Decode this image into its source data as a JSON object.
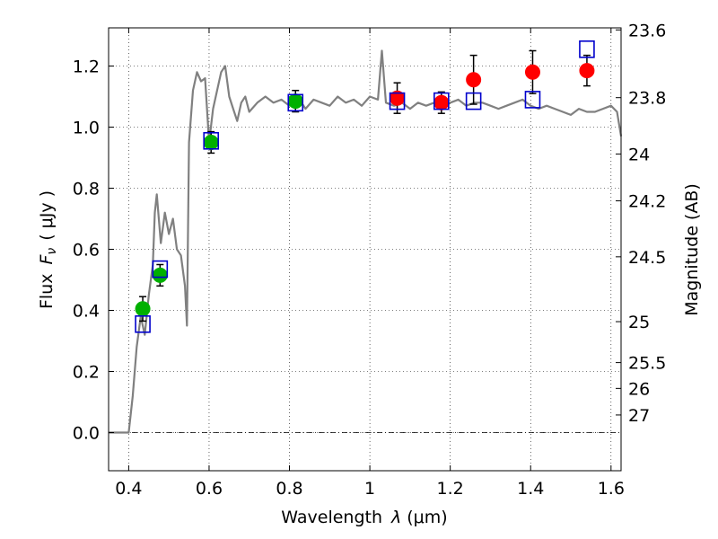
{
  "chart_data": {
    "type": "scatter",
    "title": "",
    "xlabel_prefix": "Wavelength",
    "xlabel_symbol": "λ",
    "xlabel_unit": "(μm)",
    "ylabel_prefix": "Flux",
    "ylabel_symbol": "F",
    "ylabel_subscript": "ν",
    "ylabel_unit": "( μJy )",
    "y2label": "Magnitude (AB)",
    "xlim": [
      0.35,
      1.625
    ],
    "ylim": [
      -0.125,
      1.325
    ],
    "grid": true,
    "x_ticks": [
      0.4,
      0.6,
      0.8,
      1.0,
      1.2,
      1.4,
      1.6
    ],
    "x_tick_labels": [
      "0.4",
      "0.6",
      "0.8",
      "1",
      "1.2",
      "1.4",
      "1.6"
    ],
    "y_ticks": [
      0.0,
      0.2,
      0.4,
      0.6,
      0.8,
      1.0,
      1.2
    ],
    "y_tick_labels": [
      "0.0",
      "0.2",
      "0.4",
      "0.6",
      "0.8",
      "1.0",
      "1.2"
    ],
    "magnitude_ticks": [
      "23.6",
      "23.8",
      "24",
      "24.2",
      "24.5",
      "25",
      "25.5",
      "26",
      "27"
    ],
    "magnitude_zero_point": 23.9,
    "series": [
      {
        "name": "model spectrum",
        "kind": "line",
        "color": "#808080",
        "x": [
          0.35,
          0.4,
          0.41,
          0.42,
          0.43,
          0.44,
          0.45,
          0.46,
          0.465,
          0.47,
          0.48,
          0.49,
          0.5,
          0.51,
          0.52,
          0.53,
          0.54,
          0.545,
          0.55,
          0.56,
          0.57,
          0.58,
          0.59,
          0.6,
          0.61,
          0.62,
          0.63,
          0.64,
          0.65,
          0.66,
          0.67,
          0.68,
          0.69,
          0.7,
          0.72,
          0.74,
          0.76,
          0.78,
          0.8,
          0.82,
          0.84,
          0.86,
          0.88,
          0.9,
          0.92,
          0.94,
          0.96,
          0.98,
          1.0,
          1.02,
          1.03,
          1.04,
          1.06,
          1.08,
          1.1,
          1.12,
          1.14,
          1.16,
          1.18,
          1.2,
          1.22,
          1.24,
          1.26,
          1.28,
          1.3,
          1.32,
          1.34,
          1.36,
          1.38,
          1.4,
          1.42,
          1.44,
          1.46,
          1.48,
          1.5,
          1.52,
          1.54,
          1.56,
          1.58,
          1.6,
          1.615,
          1.625
        ],
        "y": [
          0.0,
          0.0,
          0.12,
          0.28,
          0.38,
          0.32,
          0.45,
          0.55,
          0.72,
          0.78,
          0.62,
          0.72,
          0.65,
          0.7,
          0.6,
          0.58,
          0.48,
          0.35,
          0.95,
          1.12,
          1.18,
          1.15,
          1.16,
          0.95,
          1.06,
          1.12,
          1.18,
          1.2,
          1.1,
          1.06,
          1.02,
          1.08,
          1.1,
          1.05,
          1.08,
          1.1,
          1.08,
          1.09,
          1.07,
          1.1,
          1.06,
          1.09,
          1.08,
          1.07,
          1.1,
          1.08,
          1.09,
          1.07,
          1.1,
          1.09,
          1.25,
          1.08,
          1.07,
          1.08,
          1.06,
          1.08,
          1.07,
          1.08,
          1.06,
          1.08,
          1.09,
          1.07,
          1.08,
          1.08,
          1.07,
          1.06,
          1.07,
          1.08,
          1.09,
          1.07,
          1.06,
          1.07,
          1.06,
          1.05,
          1.04,
          1.06,
          1.05,
          1.05,
          1.06,
          1.07,
          1.05,
          0.97
        ]
      },
      {
        "name": "green observed",
        "kind": "points",
        "color": "#00b000",
        "x": [
          0.435,
          0.478,
          0.605,
          0.815
        ],
        "y": [
          0.405,
          0.515,
          0.95,
          1.085
        ],
        "yerr": [
          0.04,
          0.035,
          0.035,
          0.035
        ]
      },
      {
        "name": "red observed",
        "kind": "points",
        "color": "#ff0000",
        "x": [
          1.068,
          1.178,
          1.258,
          1.405,
          1.54
        ],
        "y": [
          1.095,
          1.08,
          1.155,
          1.18,
          1.185
        ],
        "yerr": [
          0.05,
          0.035,
          0.08,
          0.07,
          0.05
        ]
      },
      {
        "name": "model photometry",
        "kind": "open-squares",
        "color": "#0000cc",
        "x": [
          0.435,
          0.478,
          0.605,
          0.815,
          1.068,
          1.178,
          1.258,
          1.405,
          1.54
        ],
        "y": [
          0.355,
          0.535,
          0.955,
          1.08,
          1.085,
          1.085,
          1.085,
          1.09,
          1.255
        ]
      }
    ]
  }
}
